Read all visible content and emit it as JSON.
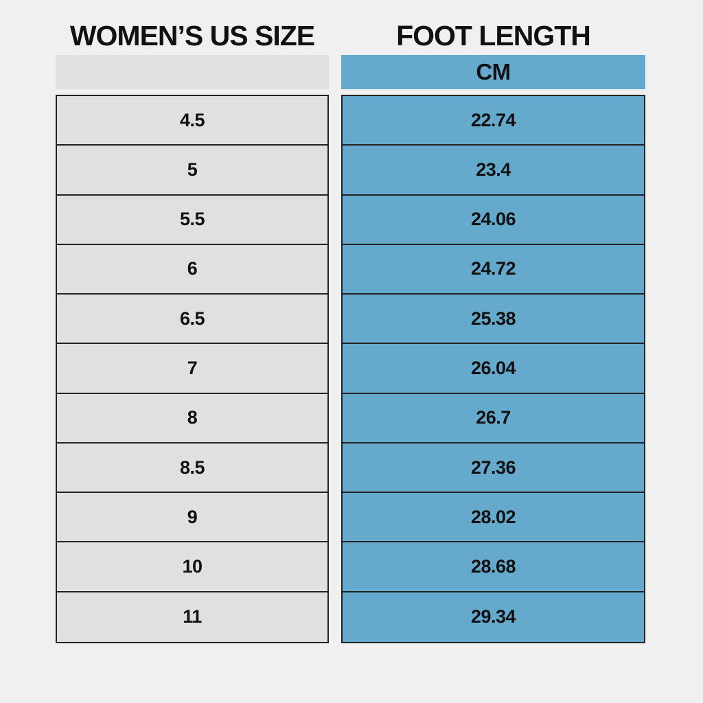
{
  "colors": {
    "background": "#f0f0f0",
    "row_gray": "#e0e0e0",
    "accent_blue": "#65a9cd",
    "border": "#222222",
    "text": "#111111"
  },
  "titles": {
    "left": "WOMEN’S US SIZE",
    "right": "FOOT LENGTH"
  },
  "table": {
    "unit_header": "CM",
    "rows": [
      {
        "size": "4.5",
        "cm": "22.74"
      },
      {
        "size": "5",
        "cm": "23.4"
      },
      {
        "size": "5.5",
        "cm": "24.06"
      },
      {
        "size": "6",
        "cm": "24.72"
      },
      {
        "size": "6.5",
        "cm": "25.38"
      },
      {
        "size": "7",
        "cm": "26.04"
      },
      {
        "size": "8",
        "cm": "26.7"
      },
      {
        "size": "8.5",
        "cm": "27.36"
      },
      {
        "size": "9",
        "cm": "28.02"
      },
      {
        "size": "10",
        "cm": "28.68"
      },
      {
        "size": "11",
        "cm": "29.34"
      }
    ]
  },
  "chart_data": {
    "type": "table",
    "columns": [
      "WOMEN’S US SIZE",
      "FOOT LENGTH CM"
    ],
    "rows": [
      [
        "4.5",
        "22.74"
      ],
      [
        "5",
        "23.4"
      ],
      [
        "5.5",
        "24.06"
      ],
      [
        "6",
        "24.72"
      ],
      [
        "6.5",
        "25.38"
      ],
      [
        "7",
        "26.04"
      ],
      [
        "8",
        "26.7"
      ],
      [
        "8.5",
        "27.36"
      ],
      [
        "9",
        "28.02"
      ],
      [
        "10",
        "28.68"
      ],
      [
        "11",
        "29.34"
      ]
    ]
  }
}
